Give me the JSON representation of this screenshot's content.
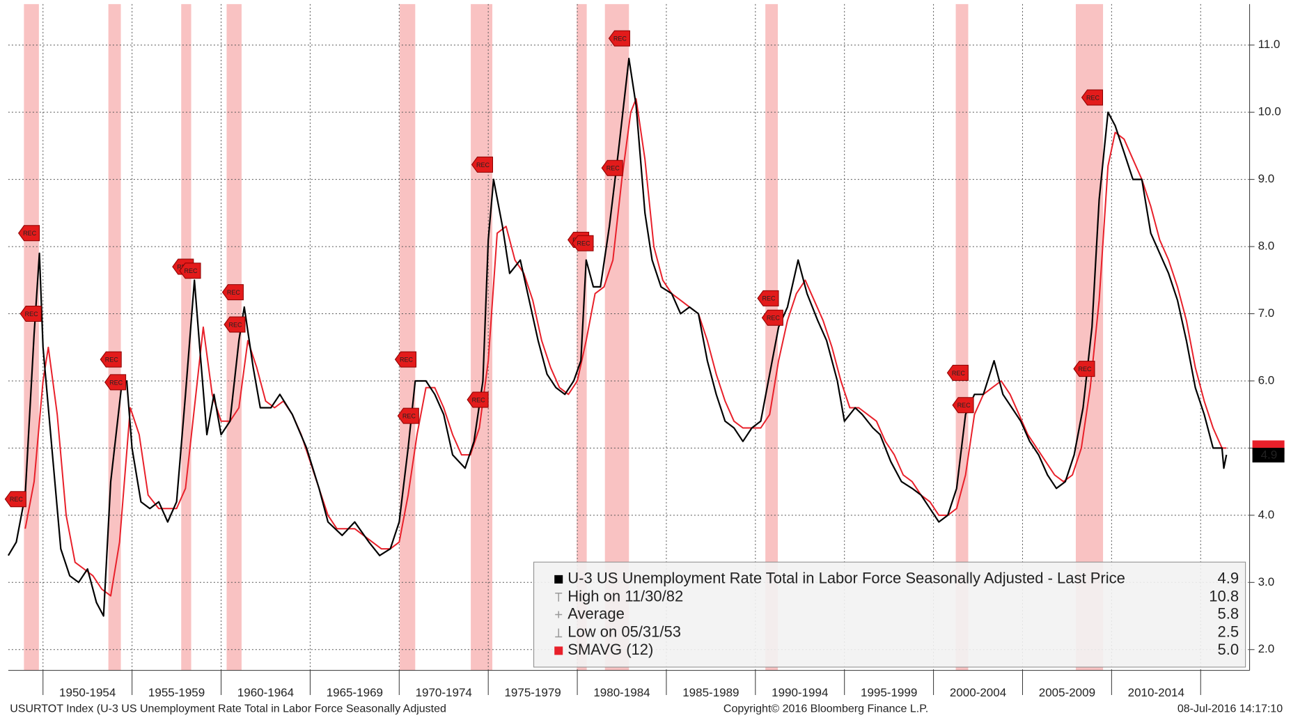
{
  "chart_data": {
    "type": "line",
    "xlim": [
      1948.05,
      2017.75
    ],
    "ylim": [
      1.69,
      11.61
    ],
    "yticks": [
      {
        "value": 2,
        "label": "2.0"
      },
      {
        "value": 3,
        "label": "3.0"
      },
      {
        "value": 4,
        "label": "4.0"
      },
      {
        "value": 5,
        "label": "5.0"
      },
      {
        "value": 6,
        "label": "6.0"
      },
      {
        "value": 7,
        "label": "7.0"
      },
      {
        "value": 8,
        "label": "8.0"
      },
      {
        "value": 9,
        "label": "9.0"
      },
      {
        "value": 10,
        "label": "10.0"
      },
      {
        "value": 11,
        "label": "11.0"
      }
    ],
    "xticks": [
      1950,
      1955,
      1960,
      1965,
      1970,
      1975,
      1980,
      1985,
      1990,
      1995,
      2000,
      2005,
      2010,
      2015
    ],
    "period_labels": [
      {
        "value": 1952.5,
        "label": "1950-1954"
      },
      {
        "value": 1957.5,
        "label": "1955-1959"
      },
      {
        "value": 1962.5,
        "label": "1960-1964"
      },
      {
        "value": 1967.5,
        "label": "1965-1969"
      },
      {
        "value": 1972.5,
        "label": "1970-1974"
      },
      {
        "value": 1977.5,
        "label": "1975-1979"
      },
      {
        "value": 1982.5,
        "label": "1980-1984"
      },
      {
        "value": 1987.5,
        "label": "1985-1989"
      },
      {
        "value": 1992.5,
        "label": "1990-1994"
      },
      {
        "value": 1997.5,
        "label": "1995-1999"
      },
      {
        "value": 2002.5,
        "label": "2000-2004"
      },
      {
        "value": 2007.5,
        "label": "2005-2009"
      },
      {
        "value": 2012.5,
        "label": "2010-2014"
      }
    ],
    "grid": true,
    "series": [
      {
        "name": "U-3 US Unemployment Rate Total in Labor Force Seasonally Adjusted - Last Price",
        "color": "#000000",
        "x": [
          1948.05,
          1948.5,
          1949.0,
          1949.5,
          1949.8,
          1950.0,
          1950.5,
          1951.0,
          1951.5,
          1952.0,
          1952.5,
          1953.0,
          1953.4,
          1953.8,
          1954.4,
          1954.7,
          1955.0,
          1955.5,
          1956.0,
          1956.5,
          1957.0,
          1957.5,
          1958.0,
          1958.5,
          1958.8,
          1959.2,
          1959.6,
          1960.0,
          1960.5,
          1961.0,
          1961.3,
          1961.8,
          1962.2,
          1962.8,
          1963.3,
          1964.0,
          1964.8,
          1965.5,
          1966.0,
          1966.8,
          1967.5,
          1968.3,
          1968.9,
          1969.5,
          1970.0,
          1970.5,
          1970.9,
          1971.5,
          1972.0,
          1972.5,
          1973.0,
          1973.7,
          1974.2,
          1974.7,
          1975.0,
          1975.3,
          1975.8,
          1976.2,
          1976.8,
          1977.3,
          1977.8,
          1978.3,
          1978.8,
          1979.3,
          1979.8,
          1980.2,
          1980.5,
          1980.9,
          1981.3,
          1981.8,
          1982.3,
          1982.9,
          1983.3,
          1983.8,
          1984.2,
          1984.7,
          1985.3,
          1985.8,
          1986.3,
          1986.8,
          1987.3,
          1987.8,
          1988.3,
          1988.8,
          1989.3,
          1989.8,
          1990.3,
          1990.8,
          1991.3,
          1991.8,
          1992.4,
          1992.9,
          1993.5,
          1994.0,
          1994.6,
          1995.0,
          1995.6,
          1996.0,
          1996.6,
          1997.0,
          1997.6,
          1998.2,
          1998.8,
          1999.3,
          1999.8,
          2000.3,
          2000.8,
          2001.3,
          2001.8,
          2002.3,
          2002.8,
          2003.4,
          2003.9,
          2004.4,
          2004.9,
          2005.4,
          2005.9,
          2006.4,
          2006.9,
          2007.4,
          2007.9,
          2008.4,
          2008.9,
          2009.3,
          2009.8,
          2010.2,
          2010.7,
          2011.2,
          2011.7,
          2012.2,
          2012.7,
          2013.2,
          2013.7,
          2014.2,
          2014.7,
          2015.2,
          2015.7,
          2016.2,
          2016.3,
          2016.45
        ],
        "values": [
          3.4,
          3.6,
          4.3,
          6.7,
          7.9,
          6.5,
          5.0,
          3.5,
          3.1,
          3.0,
          3.2,
          2.7,
          2.5,
          4.5,
          5.9,
          6.0,
          5.0,
          4.2,
          4.1,
          4.2,
          3.9,
          4.2,
          5.8,
          7.5,
          6.5,
          5.2,
          5.8,
          5.2,
          5.4,
          6.6,
          7.1,
          6.2,
          5.6,
          5.6,
          5.8,
          5.5,
          5.0,
          4.4,
          3.9,
          3.7,
          3.9,
          3.6,
          3.4,
          3.5,
          3.9,
          5.0,
          6.0,
          6.0,
          5.8,
          5.5,
          4.9,
          4.7,
          5.1,
          6.0,
          8.1,
          9.0,
          8.3,
          7.6,
          7.8,
          7.2,
          6.6,
          6.1,
          5.9,
          5.8,
          6.0,
          6.3,
          7.8,
          7.4,
          7.4,
          8.3,
          9.4,
          10.8,
          10.1,
          8.5,
          7.8,
          7.4,
          7.3,
          7.0,
          7.1,
          7.0,
          6.3,
          5.8,
          5.4,
          5.3,
          5.1,
          5.3,
          5.4,
          6.1,
          6.8,
          7.1,
          7.8,
          7.3,
          6.9,
          6.6,
          6.0,
          5.4,
          5.6,
          5.5,
          5.3,
          5.2,
          4.8,
          4.5,
          4.4,
          4.3,
          4.1,
          3.9,
          4.0,
          4.4,
          5.5,
          5.8,
          5.8,
          6.3,
          5.8,
          5.6,
          5.4,
          5.1,
          4.9,
          4.6,
          4.4,
          4.5,
          4.9,
          5.6,
          6.8,
          8.7,
          10.0,
          9.8,
          9.4,
          9.0,
          9.0,
          8.2,
          7.9,
          7.6,
          7.2,
          6.6,
          5.9,
          5.5,
          5.0,
          5.0,
          4.7,
          4.9
        ]
      },
      {
        "name": "SMAVG (12)",
        "color": "#e8202a",
        "x": [
          1949.0,
          1949.5,
          1950.0,
          1950.3,
          1950.8,
          1951.3,
          1951.8,
          1952.3,
          1952.8,
          1953.3,
          1953.8,
          1954.3,
          1954.9,
          1955.4,
          1955.9,
          1956.5,
          1957.0,
          1957.5,
          1958.0,
          1958.5,
          1959.0,
          1959.5,
          1960.0,
          1960.5,
          1961.0,
          1961.5,
          1962.0,
          1962.5,
          1963.0,
          1963.5,
          1964.0,
          1964.5,
          1965.0,
          1965.5,
          1966.0,
          1966.5,
          1967.0,
          1967.5,
          1968.0,
          1968.5,
          1969.0,
          1969.5,
          1970.0,
          1970.5,
          1971.0,
          1971.5,
          1972.0,
          1972.5,
          1973.0,
          1973.5,
          1974.0,
          1974.5,
          1975.0,
          1975.5,
          1976.0,
          1976.5,
          1977.0,
          1977.5,
          1978.0,
          1978.5,
          1979.0,
          1979.5,
          1980.0,
          1980.5,
          1981.0,
          1981.5,
          1982.0,
          1982.5,
          1983.0,
          1983.3,
          1983.8,
          1984.3,
          1984.8,
          1985.3,
          1985.8,
          1986.3,
          1986.8,
          1987.3,
          1987.8,
          1988.3,
          1988.8,
          1989.3,
          1989.8,
          1990.3,
          1990.8,
          1991.3,
          1991.8,
          1992.3,
          1992.8,
          1993.3,
          1993.8,
          1994.3,
          1994.8,
          1995.3,
          1995.8,
          1996.3,
          1996.8,
          1997.3,
          1997.8,
          1998.3,
          1998.8,
          1999.3,
          1999.8,
          2000.3,
          2000.8,
          2001.3,
          2001.8,
          2002.3,
          2002.8,
          2003.3,
          2003.8,
          2004.3,
          2004.8,
          2005.3,
          2005.8,
          2006.3,
          2006.8,
          2007.3,
          2007.8,
          2008.3,
          2008.8,
          2009.3,
          2009.8,
          2010.2,
          2010.7,
          2011.2,
          2011.7,
          2012.2,
          2012.7,
          2013.2,
          2013.7,
          2014.2,
          2014.7,
          2015.2,
          2015.7,
          2016.2,
          2016.45
        ],
        "values": [
          3.8,
          4.5,
          6.0,
          6.5,
          5.5,
          4.0,
          3.3,
          3.2,
          3.1,
          2.9,
          2.8,
          3.6,
          5.6,
          5.2,
          4.3,
          4.1,
          4.1,
          4.1,
          4.4,
          5.6,
          6.8,
          5.8,
          5.4,
          5.4,
          5.6,
          6.6,
          6.2,
          5.7,
          5.6,
          5.7,
          5.5,
          5.2,
          4.8,
          4.4,
          4.0,
          3.8,
          3.8,
          3.8,
          3.7,
          3.6,
          3.5,
          3.5,
          3.6,
          4.3,
          5.2,
          5.9,
          5.9,
          5.6,
          5.2,
          4.9,
          4.9,
          5.3,
          6.3,
          8.2,
          8.3,
          7.8,
          7.6,
          7.2,
          6.6,
          6.2,
          5.9,
          5.8,
          6.0,
          6.6,
          7.3,
          7.4,
          7.8,
          9.0,
          10.0,
          10.2,
          9.3,
          8.0,
          7.5,
          7.3,
          7.2,
          7.1,
          7.0,
          6.6,
          6.1,
          5.7,
          5.4,
          5.3,
          5.3,
          5.3,
          5.5,
          6.3,
          6.9,
          7.3,
          7.5,
          7.2,
          6.9,
          6.5,
          6.0,
          5.6,
          5.6,
          5.5,
          5.4,
          5.1,
          4.9,
          4.6,
          4.5,
          4.3,
          4.2,
          4.0,
          4.0,
          4.1,
          4.6,
          5.5,
          5.8,
          5.9,
          6.0,
          5.8,
          5.5,
          5.2,
          5.0,
          4.8,
          4.6,
          4.5,
          4.6,
          5.0,
          5.9,
          7.2,
          9.2,
          9.7,
          9.6,
          9.3,
          9.0,
          8.6,
          8.1,
          7.8,
          7.4,
          6.9,
          6.2,
          5.7,
          5.3,
          5.0,
          5.0
        ]
      }
    ],
    "recessions": [
      {
        "start": 1948.93,
        "end": 1949.77
      },
      {
        "start": 1953.67,
        "end": 1954.37
      },
      {
        "start": 1957.76,
        "end": 1958.32
      },
      {
        "start": 1960.31,
        "end": 1961.15
      },
      {
        "start": 1970.03,
        "end": 1970.9
      },
      {
        "start": 1974.02,
        "end": 1975.23
      },
      {
        "start": 1979.97,
        "end": 1980.53
      },
      {
        "start": 1981.55,
        "end": 1982.9
      },
      {
        "start": 1990.56,
        "end": 1991.26
      },
      {
        "start": 2001.25,
        "end": 2001.95
      },
      {
        "start": 2007.99,
        "end": 2009.52
      }
    ],
    "rec_label": "REC",
    "rec_markers": [
      {
        "x": 1949.25,
        "y": 8.2
      },
      {
        "x": 1949.35,
        "y": 7.0
      },
      {
        "x": 1948.5,
        "y": 4.24
      },
      {
        "x": 1953.85,
        "y": 6.32
      },
      {
        "x": 1954.1,
        "y": 5.98
      },
      {
        "x": 1957.9,
        "y": 7.7
      },
      {
        "x": 1958.3,
        "y": 7.64
      },
      {
        "x": 1960.7,
        "y": 7.32
      },
      {
        "x": 1960.8,
        "y": 6.84
      },
      {
        "x": 1970.4,
        "y": 6.32
      },
      {
        "x": 1970.55,
        "y": 5.48
      },
      {
        "x": 1974.7,
        "y": 9.22
      },
      {
        "x": 1974.45,
        "y": 5.72
      },
      {
        "x": 1980.1,
        "y": 8.1
      },
      {
        "x": 1980.35,
        "y": 8.05
      },
      {
        "x": 1982.4,
        "y": 11.1
      },
      {
        "x": 1982.0,
        "y": 9.17
      },
      {
        "x": 1990.75,
        "y": 7.23
      },
      {
        "x": 1991.0,
        "y": 6.94
      },
      {
        "x": 2001.4,
        "y": 6.12
      },
      {
        "x": 2001.7,
        "y": 5.64
      },
      {
        "x": 2008.95,
        "y": 10.22
      },
      {
        "x": 2008.5,
        "y": 6.18
      }
    ],
    "legend": [
      {
        "label": "U-3 US Unemployment Rate Total in Labor Force Seasonally Adjusted - Last Price",
        "value": 4.9
      },
      {
        "label": "High on 11/30/82",
        "value": 10.8
      },
      {
        "label": "Average",
        "value": 5.8
      },
      {
        "label": "Low on 05/31/53",
        "value": 2.5
      },
      {
        "label": "SMAVG (12)",
        "value": {
          "value": 5,
          "label": "5.0"
        }
      }
    ],
    "footer_left": "USURTOT Index (U-3 US Unemployment Rate Total in Labor Force Seasonally Adjusted",
    "footer_center": "Copyright© 2016 Bloomberg Finance L.P.",
    "footer_right": "08-Jul-2016 14:17:10"
  }
}
